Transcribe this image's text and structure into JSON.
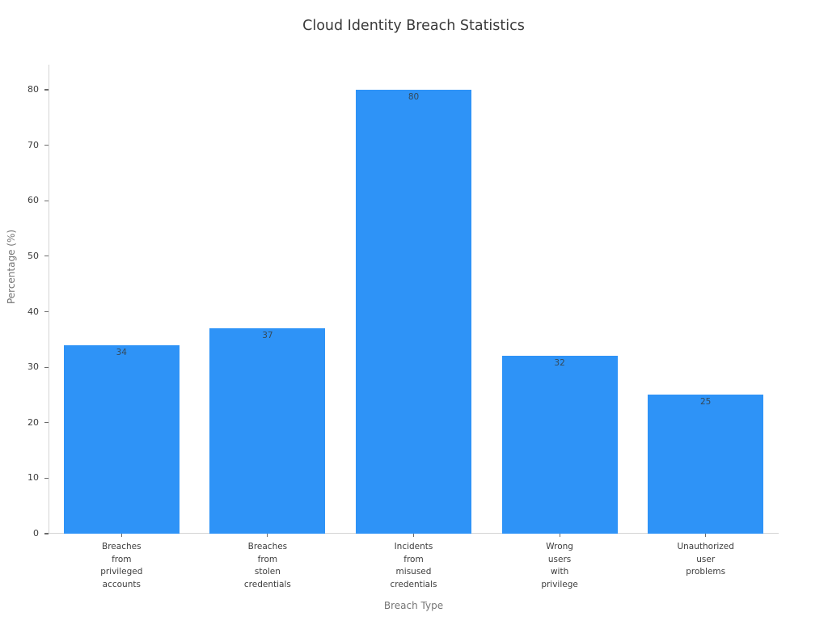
{
  "chart_data": {
    "type": "bar",
    "title": "Cloud Identity Breach Statistics",
    "xlabel": "Breach Type",
    "ylabel": "Percentage (%)",
    "categories": [
      "Breaches\nfrom\nprivileged\naccounts",
      "Breaches\nfrom\nstolen\ncredentials",
      "Incidents\nfrom\nmisused\ncredentials",
      "Wrong\nusers\nwith\nprivilege",
      "Unauthorized\nuser\nproblems"
    ],
    "values": [
      34,
      37,
      80,
      32,
      25
    ],
    "value_labels": [
      "34",
      "37",
      "80",
      "32",
      "25"
    ],
    "ylim": [
      0,
      80
    ],
    "ytick_step": 10,
    "ytick_labels": [
      "0",
      "10",
      "20",
      "30",
      "40",
      "50",
      "60",
      "70",
      "80"
    ],
    "bar_color": "#2e93f7",
    "grid": false,
    "legend_position": "none"
  }
}
